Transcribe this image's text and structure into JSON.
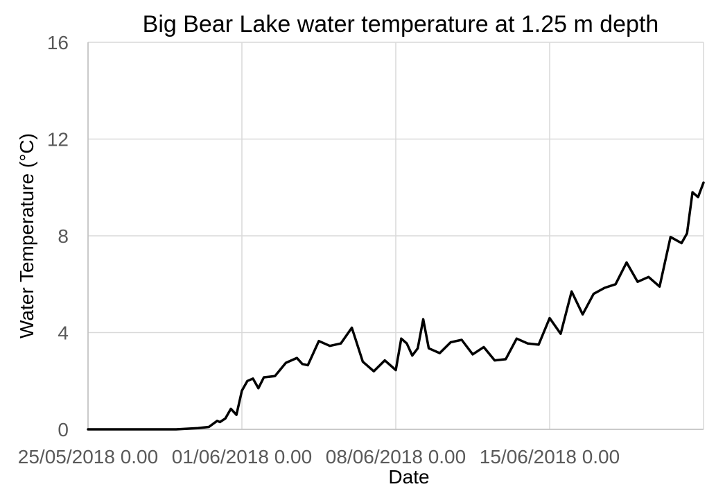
{
  "chart_data": {
    "type": "line",
    "title": "Big Bear Lake water temperature at 1.25 m depth",
    "xlabel": "Date",
    "ylabel": "Water Temperature (°C)",
    "x_ticks": [
      "25/05/2018 0.00",
      "01/06/2018 0.00",
      "08/06/2018 0.00",
      "15/06/2018 0.00"
    ],
    "y_ticks": [
      "0",
      "4",
      "8",
      "12",
      "16"
    ],
    "xlim": [
      "2018-05-25T00:00",
      "2018-06-22T00:00"
    ],
    "ylim": [
      0,
      16
    ],
    "grid": true,
    "legend": "none",
    "line_color": "#000000",
    "series": [
      {
        "x": [
          "2018-05-25T00:00",
          "2018-05-26T00:00",
          "2018-05-27T00:00",
          "2018-05-28T00:00",
          "2018-05-29T00:00",
          "2018-05-30T00:00",
          "2018-05-30T12:00",
          "2018-05-30T21:00",
          "2018-05-31T00:00",
          "2018-05-31T06:00",
          "2018-05-31T12:00",
          "2018-05-31T18:00",
          "2018-06-01T00:00",
          "2018-06-01T06:00",
          "2018-06-01T12:00",
          "2018-06-01T18:00",
          "2018-06-02T00:00",
          "2018-06-02T12:00",
          "2018-06-03T00:00",
          "2018-06-03T12:00",
          "2018-06-03T18:00",
          "2018-06-04T00:00",
          "2018-06-04T12:00",
          "2018-06-05T00:00",
          "2018-06-05T12:00",
          "2018-06-06T00:00",
          "2018-06-06T12:00",
          "2018-06-07T00:00",
          "2018-06-07T12:00",
          "2018-06-07T18:00",
          "2018-06-08T00:00",
          "2018-06-08T06:00",
          "2018-06-08T12:00",
          "2018-06-08T18:00",
          "2018-06-09T00:00",
          "2018-06-09T06:00",
          "2018-06-09T12:00",
          "2018-06-10T00:00",
          "2018-06-10T12:00",
          "2018-06-11T00:00",
          "2018-06-11T12:00",
          "2018-06-12T00:00",
          "2018-06-12T12:00",
          "2018-06-13T00:00",
          "2018-06-13T12:00",
          "2018-06-14T00:00",
          "2018-06-14T12:00",
          "2018-06-15T00:00",
          "2018-06-15T12:00",
          "2018-06-16T00:00",
          "2018-06-16T12:00",
          "2018-06-17T00:00",
          "2018-06-17T12:00",
          "2018-06-18T00:00",
          "2018-06-18T12:00",
          "2018-06-19T00:00",
          "2018-06-19T12:00",
          "2018-06-20T00:00",
          "2018-06-20T12:00",
          "2018-06-21T00:00",
          "2018-06-21T06:00",
          "2018-06-21T12:00",
          "2018-06-21T18:00",
          "2018-06-22T00:00"
        ],
        "y": [
          0,
          0,
          0,
          0,
          0,
          0.05,
          0.1,
          0.35,
          0.3,
          0.45,
          0.85,
          0.6,
          1.6,
          2.0,
          2.1,
          1.7,
          2.15,
          2.2,
          2.75,
          2.95,
          2.7,
          2.65,
          3.65,
          3.45,
          3.55,
          4.2,
          2.8,
          2.4,
          2.85,
          2.65,
          2.45,
          3.75,
          3.55,
          3.05,
          3.35,
          4.55,
          3.35,
          3.15,
          3.6,
          3.7,
          3.1,
          3.4,
          2.85,
          2.9,
          3.75,
          3.55,
          3.5,
          4.6,
          3.95,
          5.7,
          4.75,
          5.6,
          5.85,
          6.0,
          6.9,
          6.1,
          6.3,
          5.9,
          7.95,
          7.7,
          8.1,
          9.8,
          9.6,
          10.2
        ]
      }
    ]
  }
}
